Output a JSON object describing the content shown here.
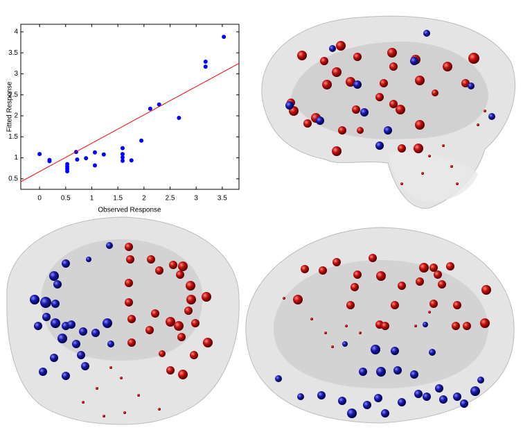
{
  "chart_data": {
    "type": "scatter",
    "x_label": "Observed Response",
    "y_label": "Fitted Response",
    "xlim": [
      -0.36,
      3.82
    ],
    "ylim": [
      0.25,
      4.18
    ],
    "xticks": [
      0,
      0.5,
      1,
      1.5,
      2,
      2.5,
      3,
      3.5
    ],
    "yticks": [
      0.5,
      1,
      1.5,
      2,
      2.5,
      3,
      3.5,
      4
    ],
    "series": [
      {
        "type": "scatter",
        "color": "#0000ff",
        "x": [
          0,
          0.19,
          0.19,
          0.53,
          0.53,
          0.53,
          0.53,
          0.7,
          0.72,
          0.89,
          1.06,
          1.06,
          1.23,
          1.59,
          1.59,
          1.59,
          1.59,
          1.76,
          1.95,
          2.12,
          2.29,
          2.67,
          3.18,
          3.18,
          3.53
        ],
        "values": [
          1.09,
          0.95,
          0.92,
          0.85,
          0.79,
          0.74,
          0.68,
          1.14,
          0.96,
          0.99,
          1.13,
          0.82,
          1.08,
          1.23,
          1.09,
          1.01,
          0.93,
          0.94,
          1.41,
          2.17,
          2.27,
          1.95,
          3.29,
          3.17,
          3.88
        ]
      },
      {
        "type": "line",
        "color": "#ff0000",
        "x": [
          -0.36,
          3.82
        ],
        "values": [
          0.43,
          3.25
        ]
      }
    ]
  }
}
